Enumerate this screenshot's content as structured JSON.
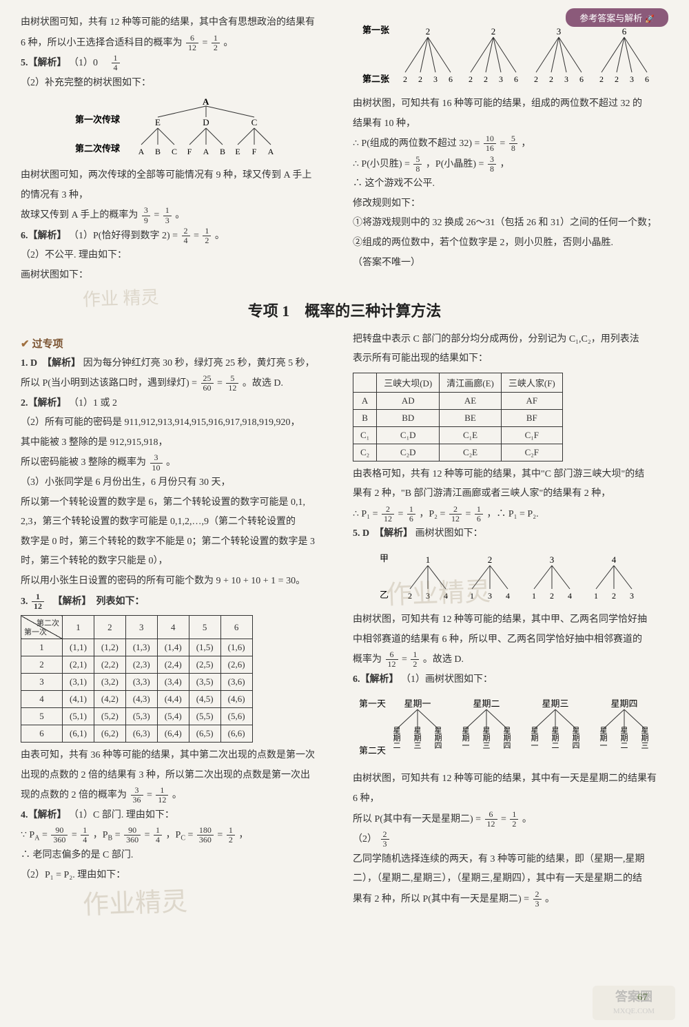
{
  "header_tag": "参考答案与解析",
  "top": {
    "left": {
      "l1": "由树状图可知，共有 12 种等可能的结果，其中含有思想政治的结果有",
      "l2_a": "6 种，所以小王选择合适科目的概率为",
      "l2_frac_n": "6",
      "l2_frac_d": "12",
      "l2_eq": " = ",
      "l2_frac2_n": "1",
      "l2_frac2_d": "2",
      "l2_end": "。",
      "q5_head": "5.【解析】",
      "q5_1": "（1）0　",
      "q5_1_frac_n": "1",
      "q5_1_frac_d": "4",
      "q5_2": "（2）补充完整的树状图如下：",
      "tree1_label1": "第一次传球",
      "tree1_label2": "第二次传球",
      "tree1_root": "A",
      "tree1_lvl1": [
        "E",
        "D",
        "C"
      ],
      "tree1_lvl2_groups": [
        [
          "A",
          "B",
          "C"
        ],
        [
          "F",
          "A",
          "B"
        ],
        [
          "E",
          "F",
          "A"
        ]
      ],
      "l_after_tree_1": "由树状图可知，两次传球的全部等可能情况有 9 种，球又传到 A 手上",
      "l_after_tree_2": "的情况有 3 种，",
      "l_after_tree_3a": "故球又传到 A 手上的概率为",
      "l_after_tree_3_f1n": "3",
      "l_after_tree_3_f1d": "9",
      "l_after_tree_3_eq": " = ",
      "l_after_tree_3_f2n": "1",
      "l_after_tree_3_f2d": "3",
      "l_after_tree_3_end": "。",
      "q6_head": "6.【解析】",
      "q6_1a": "（1）P(恰好得到数字 2) = ",
      "q6_1_f1n": "2",
      "q6_1_f1d": "4",
      "q6_1_eq": " = ",
      "q6_1_f2n": "1",
      "q6_1_f2d": "2",
      "q6_1_end": "。",
      "q6_2": "（2）不公平. 理由如下：",
      "q6_3": "画树状图如下："
    },
    "right": {
      "tree_lbl1": "第一张",
      "tree_lbl2": "第二张",
      "tree_lvl1": [
        "2",
        "2",
        "3",
        "6"
      ],
      "tree_lvl2_groups": [
        [
          "2",
          "2",
          "3",
          "6"
        ],
        [
          "2",
          "2",
          "3",
          "6"
        ],
        [
          "2",
          "2",
          "3",
          "6"
        ],
        [
          "2",
          "2",
          "3",
          "6"
        ]
      ],
      "r1": "由树状图，可知共有 16 种等可能的结果，组成的两位数不超过 32 的",
      "r2": "结果有 10 种，",
      "r3a": "∴ P(组成的两位数不超过 32) = ",
      "r3_f1n": "10",
      "r3_f1d": "16",
      "r3_eq": " = ",
      "r3_f2n": "5",
      "r3_f2d": "8",
      "r3_end": "，",
      "r4a": "∴ P(小贝胜) = ",
      "r4_f1n": "5",
      "r4_f1d": "8",
      "r4_mid": "，P(小晶胜) = ",
      "r4_f2n": "3",
      "r4_f2d": "8",
      "r4_end": "，",
      "r5": "∴ 这个游戏不公平.",
      "r6": "修改规则如下：",
      "r7": "①将游戏规则中的 32 换成 26～31（包括 26 和 31）之间的任何一个数；",
      "r8": "②组成的两位数中，若个位数字是 2，则小贝胜，否则小晶胜.",
      "r9": "（答案不唯一）"
    }
  },
  "section1_title": "专项 1　概率的三种计算方法",
  "guo_zhuanxiang": "过专项",
  "bottom": {
    "left": {
      "q1_head": "1. D　【解析】",
      "q1_1": "因为每分钟红灯亮 30 秒，绿灯亮 25 秒，黄灯亮 5 秒，",
      "q1_2a": "所以 P(当小明到达该路口时，遇到绿灯) = ",
      "q1_2_f1n": "25",
      "q1_2_f1d": "60",
      "q1_2_eq": " = ",
      "q1_2_f2n": "5",
      "q1_2_f2d": "12",
      "q1_2_end": "。故选 D.",
      "q2_head": "2.【解析】",
      "q2_1": "（1）1 或 2",
      "q2_2": "（2）所有可能的密码是 911,912,913,914,915,916,917,918,919,920，",
      "q2_3": "其中能被 3 整除的是 912,915,918，",
      "q2_4a": "所以密码能被 3 整除的概率为",
      "q2_4_fn": "3",
      "q2_4_fd": "10",
      "q2_4_end": "。",
      "q2_5": "（3）小张同学是 6 月份出生，6 月份只有 30 天，",
      "q2_6": "所以第一个转轮设置的数字是 6，第二个转轮设置的数字可能是 0,1,",
      "q2_7": "2,3，第三个转轮设置的数字可能是 0,1,2,…,9（第二个转轮设置的",
      "q2_8": "数字是 0 时，第三个转轮的数字不能是 0；第二个转轮设置的数字是 3",
      "q2_9": "时，第三个转轮的数字只能是 0），",
      "q2_10": "所以用小张生日设置的密码的所有可能个数为 9 + 10 + 10 + 1 = 30。",
      "q3_head_a": "3. ",
      "q3_head_fn": "1",
      "q3_head_fd": "12",
      "q3_head_b": "　【解析】　列表如下：",
      "table3": {
        "diag_top": "第二次",
        "diag_bot": "第一次",
        "cols": [
          "1",
          "2",
          "3",
          "4",
          "5",
          "6"
        ],
        "rows": [
          "1",
          "2",
          "3",
          "4",
          "5",
          "6"
        ],
        "cells": [
          [
            "(1,1)",
            "(1,2)",
            "(1,3)",
            "(1,4)",
            "(1,5)",
            "(1,6)"
          ],
          [
            "(2,1)",
            "(2,2)",
            "(2,3)",
            "(2,4)",
            "(2,5)",
            "(2,6)"
          ],
          [
            "(3,1)",
            "(3,2)",
            "(3,3)",
            "(3,4)",
            "(3,5)",
            "(3,6)"
          ],
          [
            "(4,1)",
            "(4,2)",
            "(4,3)",
            "(4,4)",
            "(4,5)",
            "(4,6)"
          ],
          [
            "(5,1)",
            "(5,2)",
            "(5,3)",
            "(5,4)",
            "(5,5)",
            "(5,6)"
          ],
          [
            "(6,1)",
            "(6,2)",
            "(6,3)",
            "(6,4)",
            "(6,5)",
            "(6,6)"
          ]
        ]
      },
      "q3_t1": "由表可知，共有 36 种等可能的结果，其中第二次出现的点数是第一次",
      "q3_t2": "出现的点数的 2 倍的结果有 3 种，所以第二次出现的点数是第一次出",
      "q3_t3a": "现的点数的 2 倍的概率为",
      "q3_t3_f1n": "3",
      "q3_t3_f1d": "36",
      "q3_t3_eq": " = ",
      "q3_t3_f2n": "1",
      "q3_t3_f2d": "12",
      "q3_t3_end": "。",
      "q4_head": "4.【解析】",
      "q4_1": "（1）C 部门. 理由如下：",
      "q4_2a": "∵ P",
      "q4_2sub1": "A",
      "q4_2b": " = ",
      "q4_2_f1n": "90",
      "q4_2_f1d": "360",
      "q4_2_eq1": " = ",
      "q4_2_f2n": "1",
      "q4_2_f2d": "4",
      "q4_2c": "，P",
      "q4_2sub2": "B",
      "q4_2d": " = ",
      "q4_2_f3n": "90",
      "q4_2_f3d": "360",
      "q4_2_eq2": " = ",
      "q4_2_f4n": "1",
      "q4_2_f4d": "4",
      "q4_2e": "，P",
      "q4_2sub3": "C",
      "q4_2f": " = ",
      "q4_2_f5n": "180",
      "q4_2_f5d": "360",
      "q4_2_eq3": " = ",
      "q4_2_f6n": "1",
      "q4_2_f6d": "2",
      "q4_2_end": "，",
      "q4_3": "∴ 老同志偏多的是 C 部门.",
      "q4_4": "（2）P₁ = P₂. 理由如下："
    },
    "right": {
      "intro1": "把转盘中表示 C 部门的部分均分成两份，分别记为 C₁,C₂，用列表法",
      "intro2": "表示所有可能出现的结果如下：",
      "table4": {
        "cols": [
          "三峡大坝(D)",
          "清江画廊(E)",
          "三峡人家(F)"
        ],
        "rows": [
          "A",
          "B",
          "C₁",
          "C₂"
        ],
        "cells": [
          [
            "AD",
            "AE",
            "AF"
          ],
          [
            "BD",
            "BE",
            "BF"
          ],
          [
            "C₁D",
            "C₁E",
            "C₁F"
          ],
          [
            "C₂D",
            "C₂E",
            "C₂F"
          ]
        ]
      },
      "t1": "由表格可知，共有 12 种等可能的结果，其中\"C 部门游三峡大坝\"的结",
      "t2": "果有 2 种，\"B 部门游清江画廊或者三峡人家\"的结果有 2 种，",
      "t3a": "∴ P₁ = ",
      "t3_f1n": "2",
      "t3_f1d": "12",
      "t3_eq1": " = ",
      "t3_f2n": "1",
      "t3_f2d": "6",
      "t3_mid": "，P₂ = ",
      "t3_f3n": "2",
      "t3_f3d": "12",
      "t3_eq2": " = ",
      "t3_f4n": "1",
      "t3_f4d": "6",
      "t3_end": "，∴ P₁ = P₂.",
      "q5_head": "5. D　【解析】",
      "q5_1": "画树状图如下：",
      "tree5_lbl1": "甲",
      "tree5_lbl2": "乙",
      "tree5_lvl1": [
        "1",
        "2",
        "3",
        "4"
      ],
      "tree5_lvl2_groups": [
        [
          "2",
          "3",
          "4"
        ],
        [
          "1",
          "3",
          "4"
        ],
        [
          "1",
          "2",
          "4"
        ],
        [
          "1",
          "2",
          "3"
        ]
      ],
      "q5_t1": "由树状图，可知共有 12 种等可能的结果，其中甲、乙两名同学恰好抽",
      "q5_t2": "中相邻赛道的结果有 6 种，所以甲、乙两名同学恰好抽中相邻赛道的",
      "q5_t3a": "概率为",
      "q5_t3_f1n": "6",
      "q5_t3_f1d": "12",
      "q5_t3_eq": " = ",
      "q5_t3_f2n": "1",
      "q5_t3_f2d": "2",
      "q5_t3_end": "。故选 D.",
      "q6_head": "6.【解析】",
      "q6_1": "（1）画树状图如下：",
      "tree6_lbl1": "第一天",
      "tree6_lbl2": "第二天",
      "tree6_lvl1": [
        "星期一",
        "星期二",
        "星期三",
        "星期四"
      ],
      "tree6_lvl2_groups": [
        [
          "星期二",
          "星期三",
          "星期四"
        ],
        [
          "星期一",
          "星期三",
          "星期四"
        ],
        [
          "星期一",
          "星期二",
          "星期四"
        ],
        [
          "星期一",
          "星期二",
          "星期三"
        ]
      ],
      "q6_t1": "由树状图，可知共有 12 种等可能的结果，其中有一天是星期二的结果有",
      "q6_t2": "6 种，",
      "q6_t3a": "所以 P(其中有一天是星期二) = ",
      "q6_t3_f1n": "6",
      "q6_t3_f1d": "12",
      "q6_t3_eq": " = ",
      "q6_t3_f2n": "1",
      "q6_t3_f2d": "2",
      "q6_t3_end": "。",
      "q6_2a": "（2）",
      "q6_2_fn": "2",
      "q6_2_fd": "3",
      "q6_u1": "乙同学随机选择连续的两天，有 3 种等可能的结果，即（星期一,星期",
      "q6_u2": "二），（星期二,星期三），（星期三,星期四），其中有一天是星期二的结",
      "q6_u3a": "果有 2 种，所以 P(其中有一天是星期二) = ",
      "q6_u3_fn": "2",
      "q6_u3_fd": "3",
      "q6_u3_end": "。"
    }
  },
  "page_num": "67",
  "watermark_stamp": "作业\n精灵",
  "watermark_mid": "作业精灵",
  "foot_brand": "答案圈",
  "foot_url": "MXQE.COM"
}
